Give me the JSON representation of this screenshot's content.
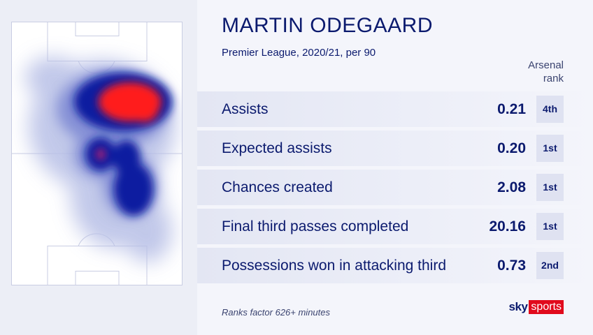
{
  "player_name": "MARTIN ODEGAARD",
  "subtitle": "Premier League, 2020/21, per 90",
  "rank_header": [
    "Arsenal",
    "rank"
  ],
  "stats": [
    {
      "label": "Assists",
      "value": "0.21",
      "rank": "4th"
    },
    {
      "label": "Expected assists",
      "value": "0.20",
      "rank": "1st"
    },
    {
      "label": "Chances created",
      "value": "2.08",
      "rank": "1st"
    },
    {
      "label": "Final third passes completed",
      "value": "20.16",
      "rank": "1st"
    },
    {
      "label": "Possessions won in attacking third",
      "value": "0.73",
      "rank": "2nd"
    }
  ],
  "footnote": "Ranks factor 626+ minutes",
  "logo": {
    "sky": "sky",
    "sports": "sports"
  },
  "heatmap": {
    "colors": {
      "hot": "#ff1a1a",
      "warm": "#0a1aa0",
      "cool": "#9aa6df",
      "pitch": "#ffffff",
      "lines": "#c9cde3"
    },
    "hotspots": [
      {
        "zone": "right-central attacking half",
        "level": "high"
      },
      {
        "zone": "left of centre circle",
        "level": "medium"
      },
      {
        "zone": "right of centre circle",
        "level": "medium"
      }
    ]
  },
  "colors": {
    "navy": "#0b1a6e",
    "sky_red": "#e10a1c",
    "background": "#f4f5fb"
  }
}
